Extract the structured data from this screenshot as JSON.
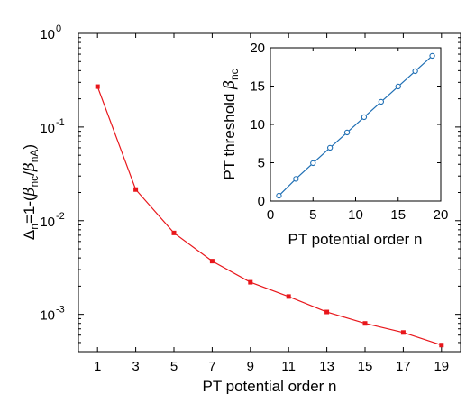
{
  "chart_data": [
    {
      "id": "main",
      "type": "line",
      "xlabel": "PT potential order n",
      "ylabel": {
        "delta": "Δ",
        "delta_sub": "n",
        "rest1": "=1-(",
        "beta1": "β",
        "beta1_sub": "nc",
        "slash": "/",
        "beta2": "β",
        "beta2_sub": "nA",
        "close": ")"
      },
      "yscale": "log",
      "xlim": [
        0,
        20
      ],
      "ylim": [
        0.0004,
        1
      ],
      "xticks": [
        1,
        3,
        5,
        7,
        9,
        11,
        13,
        15,
        17,
        19
      ],
      "yticks": [
        {
          "value": 0.001,
          "base": "10",
          "exp": "-3"
        },
        {
          "value": 0.01,
          "base": "10",
          "exp": "-2"
        },
        {
          "value": 0.1,
          "base": "10",
          "exp": "-1"
        },
        {
          "value": 1,
          "base": "10",
          "exp": "0"
        }
      ],
      "color": "#e8161b",
      "marker": "square",
      "x": [
        1,
        3,
        5,
        7,
        9,
        11,
        13,
        15,
        17,
        19
      ],
      "y": [
        0.27,
        0.0215,
        0.0074,
        0.0037,
        0.0022,
        0.00155,
        0.00106,
        0.0008,
        0.00064,
        0.00047
      ]
    },
    {
      "id": "inset",
      "type": "line",
      "xlabel": "PT potential order n",
      "ylabel": {
        "text": "PT threshold ",
        "beta": "β",
        "beta_sub": "nc"
      },
      "xlim": [
        0,
        20
      ],
      "ylim": [
        0,
        20
      ],
      "xticks": [
        0,
        5,
        10,
        15,
        20
      ],
      "yticks": [
        0,
        5,
        10,
        15,
        20
      ],
      "color": "#1f6fb4",
      "marker": "circle",
      "x": [
        1,
        3,
        5,
        7,
        9,
        11,
        13,
        15,
        17,
        19
      ],
      "y": [
        0.7,
        2.9,
        4.95,
        6.95,
        8.95,
        10.95,
        12.95,
        14.95,
        16.95,
        18.95
      ]
    }
  ]
}
